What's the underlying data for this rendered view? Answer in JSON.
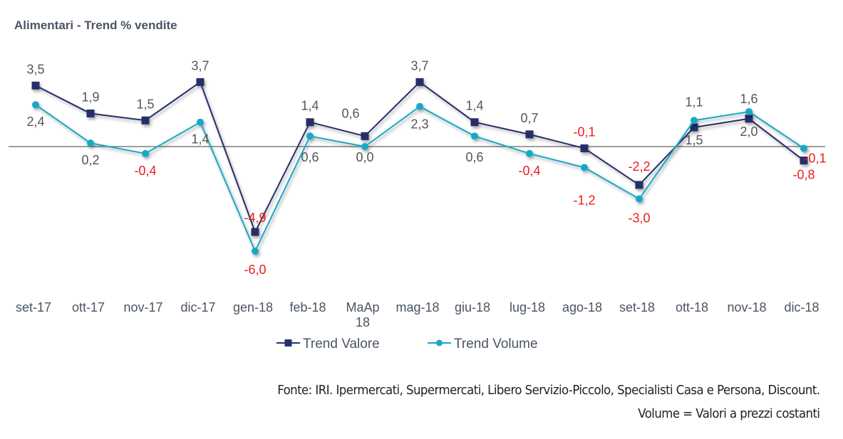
{
  "chart_data": {
    "type": "line",
    "title": "Alimentari - Trend % vendite",
    "xlabel": "",
    "ylabel": "",
    "categories": [
      "set-17",
      "ott-17",
      "nov-17",
      "dic-17",
      "gen-18",
      "feb-18",
      "MaAp 18",
      "mag-18",
      "giu-18",
      "lug-18",
      "ago-18",
      "set-18",
      "ott-18",
      "nov-18",
      "dic-18"
    ],
    "series": [
      {
        "name": "Trend Valore",
        "color": "#252f6b",
        "marker": "square",
        "values": [
          3.5,
          1.9,
          1.5,
          3.7,
          -4.9,
          1.4,
          0.6,
          3.7,
          1.4,
          0.7,
          -0.1,
          -2.2,
          1.1,
          1.6,
          -0.8
        ]
      },
      {
        "name": "Trend Volume",
        "color": "#17a9c6",
        "marker": "circle",
        "values": [
          2.4,
          0.2,
          -0.4,
          1.4,
          -6.0,
          0.6,
          0.0,
          2.3,
          0.6,
          -0.4,
          -1.2,
          -3.0,
          1.5,
          2.0,
          -0.1
        ]
      }
    ],
    "ylim": [
      -8,
      5
    ],
    "grid": false,
    "zero_line": true,
    "legend": "bottom",
    "label_colors": {
      "positive": "#555555",
      "negative": "#ee1c1c"
    },
    "decimal_separator": ","
  },
  "footer": {
    "source": "Fonte: IRI. Ipermercati, Supermercati, Libero Servizio-Piccolo, Specialisti Casa e Persona, Discount.",
    "note": "Volume = Valori a prezzi costanti"
  }
}
